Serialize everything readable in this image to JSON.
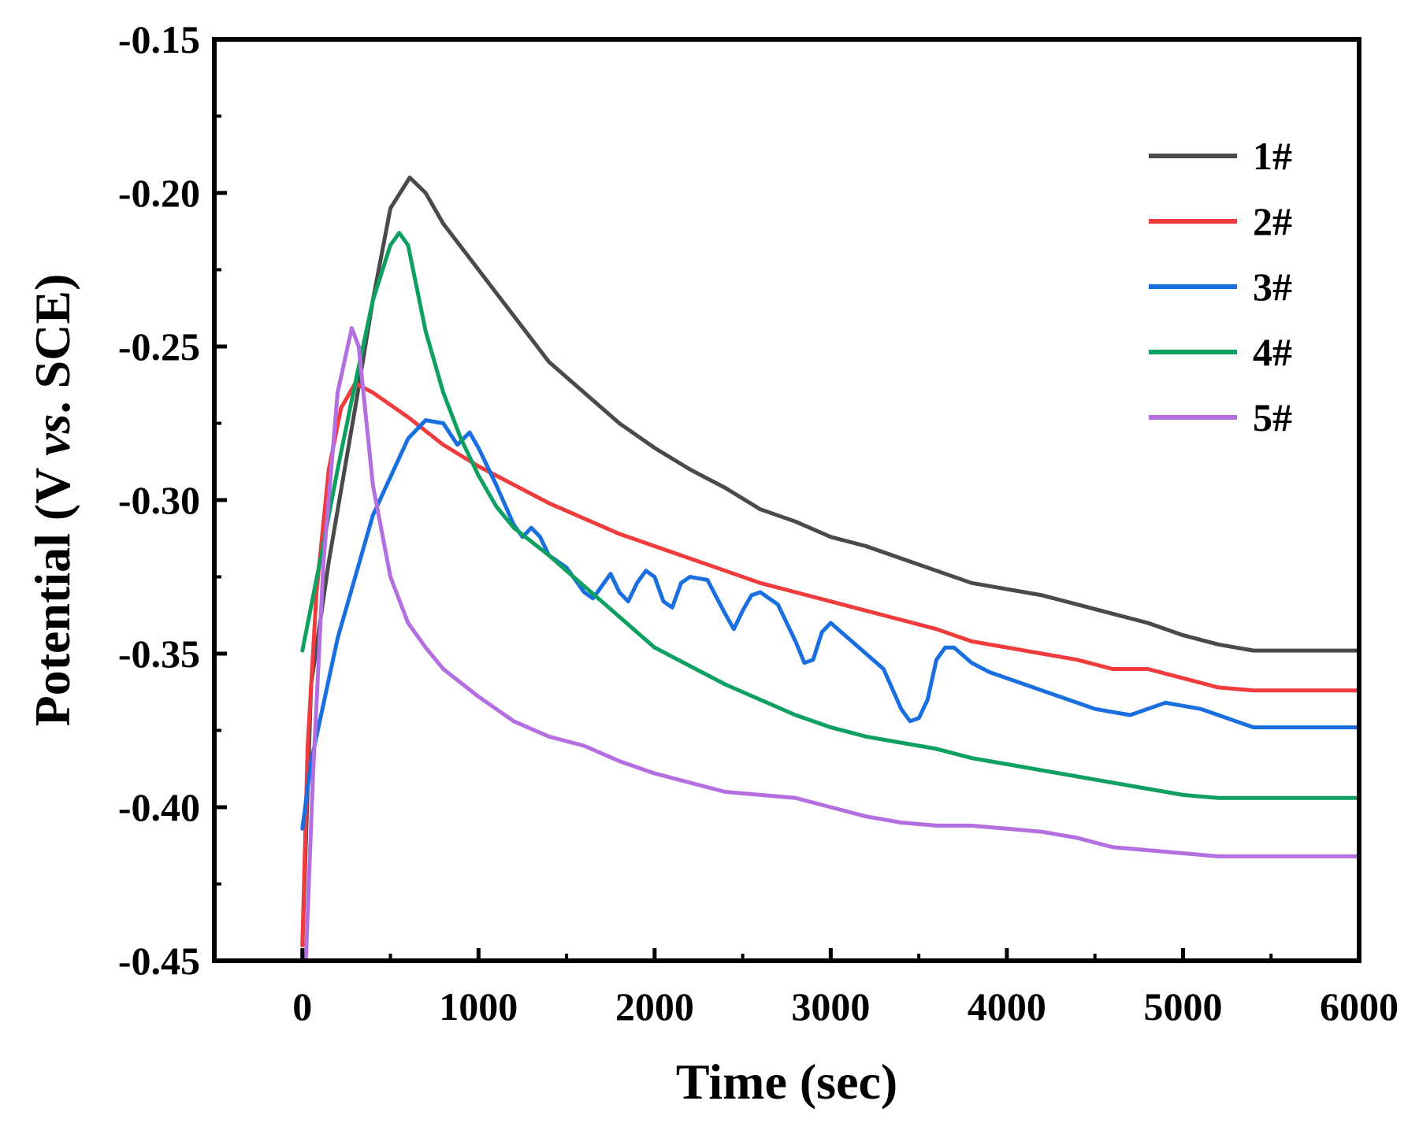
{
  "chart_data": {
    "type": "line",
    "title": "",
    "xlabel": "Time (sec)",
    "ylabel_parts": [
      "Potential (V ",
      "vs",
      ". SCE)"
    ],
    "xlim": [
      -500,
      6000
    ],
    "ylim": [
      -0.45,
      -0.15
    ],
    "xticks": [
      0,
      1000,
      2000,
      3000,
      4000,
      5000,
      6000
    ],
    "xtick_labels": [
      "0",
      "1000",
      "2000",
      "3000",
      "4000",
      "5000",
      "6000"
    ],
    "yticks": [
      -0.45,
      -0.4,
      -0.35,
      -0.3,
      -0.25,
      -0.2,
      -0.15
    ],
    "ytick_labels": [
      "-0.45",
      "-0.40",
      "-0.35",
      "-0.30",
      "-0.25",
      "-0.20",
      "-0.15"
    ],
    "grid": false,
    "legend_position": "top-right",
    "series": [
      {
        "name": "1#",
        "color": "#4a4a4a",
        "points": [
          [
            0,
            -0.445
          ],
          [
            50,
            -0.36
          ],
          [
            150,
            -0.32
          ],
          [
            300,
            -0.27
          ],
          [
            400,
            -0.235
          ],
          [
            500,
            -0.205
          ],
          [
            610,
            -0.195
          ],
          [
            700,
            -0.2
          ],
          [
            800,
            -0.21
          ],
          [
            1000,
            -0.225
          ],
          [
            1200,
            -0.24
          ],
          [
            1400,
            -0.255
          ],
          [
            1600,
            -0.265
          ],
          [
            1800,
            -0.275
          ],
          [
            2000,
            -0.283
          ],
          [
            2200,
            -0.29
          ],
          [
            2400,
            -0.296
          ],
          [
            2600,
            -0.303
          ],
          [
            2800,
            -0.307
          ],
          [
            3000,
            -0.312
          ],
          [
            3200,
            -0.315
          ],
          [
            3400,
            -0.319
          ],
          [
            3600,
            -0.323
          ],
          [
            3800,
            -0.327
          ],
          [
            4000,
            -0.329
          ],
          [
            4200,
            -0.331
          ],
          [
            4400,
            -0.334
          ],
          [
            4600,
            -0.337
          ],
          [
            4800,
            -0.34
          ],
          [
            5000,
            -0.344
          ],
          [
            5200,
            -0.347
          ],
          [
            5400,
            -0.349
          ],
          [
            6000,
            -0.349
          ]
        ]
      },
      {
        "name": "2#",
        "color": "#f03c3c",
        "points": [
          [
            0,
            -0.445
          ],
          [
            30,
            -0.38
          ],
          [
            80,
            -0.33
          ],
          [
            150,
            -0.29
          ],
          [
            220,
            -0.27
          ],
          [
            300,
            -0.262
          ],
          [
            400,
            -0.265
          ],
          [
            600,
            -0.273
          ],
          [
            800,
            -0.282
          ],
          [
            1000,
            -0.289
          ],
          [
            1200,
            -0.295
          ],
          [
            1400,
            -0.301
          ],
          [
            1600,
            -0.306
          ],
          [
            1800,
            -0.311
          ],
          [
            2000,
            -0.315
          ],
          [
            2200,
            -0.319
          ],
          [
            2400,
            -0.323
          ],
          [
            2600,
            -0.327
          ],
          [
            2800,
            -0.33
          ],
          [
            3000,
            -0.333
          ],
          [
            3200,
            -0.336
          ],
          [
            3400,
            -0.339
          ],
          [
            3600,
            -0.342
          ],
          [
            3800,
            -0.346
          ],
          [
            4000,
            -0.348
          ],
          [
            4200,
            -0.35
          ],
          [
            4400,
            -0.352
          ],
          [
            4600,
            -0.355
          ],
          [
            4800,
            -0.355
          ],
          [
            5000,
            -0.358
          ],
          [
            5200,
            -0.361
          ],
          [
            5400,
            -0.362
          ],
          [
            6000,
            -0.362
          ]
        ]
      },
      {
        "name": "3#",
        "color": "#1a6fe0",
        "points": [
          [
            0,
            -0.407
          ],
          [
            50,
            -0.385
          ],
          [
            200,
            -0.345
          ],
          [
            400,
            -0.305
          ],
          [
            600,
            -0.28
          ],
          [
            700,
            -0.274
          ],
          [
            800,
            -0.275
          ],
          [
            880,
            -0.282
          ],
          [
            950,
            -0.278
          ],
          [
            1000,
            -0.283
          ],
          [
            1100,
            -0.295
          ],
          [
            1200,
            -0.308
          ],
          [
            1250,
            -0.312
          ],
          [
            1300,
            -0.309
          ],
          [
            1350,
            -0.312
          ],
          [
            1400,
            -0.318
          ],
          [
            1500,
            -0.322
          ],
          [
            1600,
            -0.33
          ],
          [
            1650,
            -0.332
          ],
          [
            1700,
            -0.328
          ],
          [
            1750,
            -0.324
          ],
          [
            1800,
            -0.33
          ],
          [
            1850,
            -0.333
          ],
          [
            1900,
            -0.327
          ],
          [
            1950,
            -0.323
          ],
          [
            2000,
            -0.325
          ],
          [
            2050,
            -0.333
          ],
          [
            2100,
            -0.335
          ],
          [
            2150,
            -0.327
          ],
          [
            2200,
            -0.325
          ],
          [
            2300,
            -0.326
          ],
          [
            2400,
            -0.337
          ],
          [
            2450,
            -0.342
          ],
          [
            2500,
            -0.336
          ],
          [
            2550,
            -0.331
          ],
          [
            2600,
            -0.33
          ],
          [
            2700,
            -0.334
          ],
          [
            2800,
            -0.346
          ],
          [
            2850,
            -0.353
          ],
          [
            2900,
            -0.352
          ],
          [
            2950,
            -0.343
          ],
          [
            3000,
            -0.34
          ],
          [
            3100,
            -0.345
          ],
          [
            3200,
            -0.35
          ],
          [
            3300,
            -0.355
          ],
          [
            3400,
            -0.368
          ],
          [
            3450,
            -0.372
          ],
          [
            3500,
            -0.371
          ],
          [
            3550,
            -0.365
          ],
          [
            3600,
            -0.352
          ],
          [
            3650,
            -0.348
          ],
          [
            3700,
            -0.348
          ],
          [
            3800,
            -0.353
          ],
          [
            3900,
            -0.356
          ],
          [
            4000,
            -0.358
          ],
          [
            4100,
            -0.36
          ],
          [
            4200,
            -0.362
          ],
          [
            4300,
            -0.364
          ],
          [
            4400,
            -0.366
          ],
          [
            4500,
            -0.368
          ],
          [
            4600,
            -0.369
          ],
          [
            4700,
            -0.37
          ],
          [
            4800,
            -0.368
          ],
          [
            4900,
            -0.366
          ],
          [
            5000,
            -0.367
          ],
          [
            5100,
            -0.368
          ],
          [
            5200,
            -0.37
          ],
          [
            5300,
            -0.372
          ],
          [
            5400,
            -0.374
          ],
          [
            6000,
            -0.374
          ]
        ]
      },
      {
        "name": "4#",
        "color": "#0ea060",
        "points": [
          [
            0,
            -0.349
          ],
          [
            100,
            -0.32
          ],
          [
            200,
            -0.29
          ],
          [
            300,
            -0.262
          ],
          [
            400,
            -0.235
          ],
          [
            500,
            -0.217
          ],
          [
            550,
            -0.213
          ],
          [
            600,
            -0.217
          ],
          [
            700,
            -0.245
          ],
          [
            800,
            -0.265
          ],
          [
            900,
            -0.28
          ],
          [
            1000,
            -0.292
          ],
          [
            1100,
            -0.302
          ],
          [
            1200,
            -0.309
          ],
          [
            1400,
            -0.318
          ],
          [
            1600,
            -0.328
          ],
          [
            1800,
            -0.338
          ],
          [
            2000,
            -0.348
          ],
          [
            2200,
            -0.354
          ],
          [
            2400,
            -0.36
          ],
          [
            2600,
            -0.365
          ],
          [
            2800,
            -0.37
          ],
          [
            3000,
            -0.374
          ],
          [
            3200,
            -0.377
          ],
          [
            3400,
            -0.379
          ],
          [
            3600,
            -0.381
          ],
          [
            3800,
            -0.384
          ],
          [
            4000,
            -0.386
          ],
          [
            4200,
            -0.388
          ],
          [
            4400,
            -0.39
          ],
          [
            4600,
            -0.392
          ],
          [
            4800,
            -0.394
          ],
          [
            5000,
            -0.396
          ],
          [
            5200,
            -0.397
          ],
          [
            5400,
            -0.397
          ],
          [
            6000,
            -0.397
          ]
        ]
      },
      {
        "name": "5#",
        "color": "#b36ee0",
        "points": [
          [
            20,
            -0.45
          ],
          [
            60,
            -0.39
          ],
          [
            120,
            -0.32
          ],
          [
            200,
            -0.265
          ],
          [
            280,
            -0.244
          ],
          [
            320,
            -0.25
          ],
          [
            400,
            -0.295
          ],
          [
            500,
            -0.325
          ],
          [
            600,
            -0.34
          ],
          [
            700,
            -0.348
          ],
          [
            800,
            -0.355
          ],
          [
            1000,
            -0.364
          ],
          [
            1200,
            -0.372
          ],
          [
            1400,
            -0.377
          ],
          [
            1600,
            -0.38
          ],
          [
            1800,
            -0.385
          ],
          [
            2000,
            -0.389
          ],
          [
            2200,
            -0.392
          ],
          [
            2400,
            -0.395
          ],
          [
            2600,
            -0.396
          ],
          [
            2800,
            -0.397
          ],
          [
            3000,
            -0.4
          ],
          [
            3200,
            -0.403
          ],
          [
            3400,
            -0.405
          ],
          [
            3600,
            -0.406
          ],
          [
            3800,
            -0.406
          ],
          [
            4000,
            -0.407
          ],
          [
            4200,
            -0.408
          ],
          [
            4400,
            -0.41
          ],
          [
            4600,
            -0.413
          ],
          [
            4800,
            -0.414
          ],
          [
            5000,
            -0.415
          ],
          [
            5200,
            -0.416
          ],
          [
            5400,
            -0.416
          ],
          [
            6000,
            -0.416
          ]
        ]
      }
    ]
  }
}
